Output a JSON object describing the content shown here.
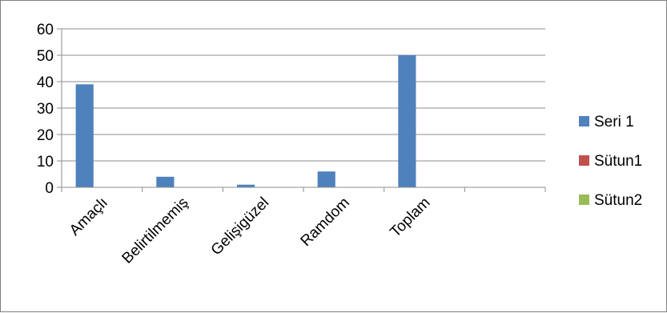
{
  "chart_data": {
    "type": "bar",
    "title": "",
    "xlabel": "",
    "ylabel": "",
    "categories": [
      "Amaçlı",
      "Belirtilmemiş",
      "Gelişigüzel",
      "Ramdom",
      "Toplam",
      ""
    ],
    "series": [
      {
        "name": "Seri 1",
        "color": "#4f81bd",
        "values": [
          39,
          4,
          1,
          6,
          50,
          null
        ]
      },
      {
        "name": "Sütun1",
        "color": "#c0504d",
        "values": [
          null,
          null,
          null,
          null,
          null,
          null
        ]
      },
      {
        "name": "Sütun2",
        "color": "#9bbb59",
        "values": [
          null,
          null,
          null,
          null,
          null,
          null
        ]
      }
    ],
    "ylim": [
      0,
      60
    ],
    "yticks": [
      0,
      10,
      20,
      30,
      40,
      50,
      60
    ],
    "grid": true,
    "legend_position": "right"
  }
}
